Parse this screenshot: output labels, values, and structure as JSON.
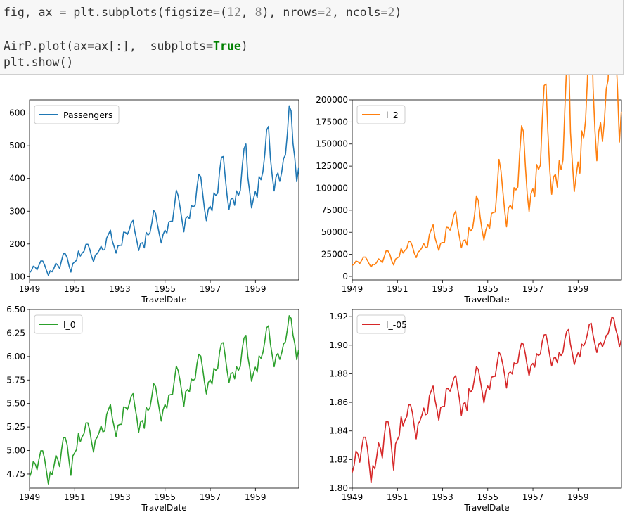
{
  "code": {
    "line1": {
      "t1": "fig, ax ",
      "op1": "=",
      "t2": " plt.subplots(figsize",
      "op2": "=",
      "t3": "(",
      "n1": "12",
      "t4": ", ",
      "n2": "8",
      "t5": "), nrows",
      "op3": "=",
      "n3": "2",
      "t6": ", ncols",
      "op4": "=",
      "n4": "2",
      "t7": ")"
    },
    "line2": {
      "t1": "AirP.plot(ax",
      "op1": "=",
      "t2": "ax[:],  subplots",
      "op2": "=",
      "kw": "True",
      "t3": ")"
    },
    "line3": {
      "t1": "plt.show()"
    }
  },
  "chart_data": [
    {
      "type": "line",
      "xlabel": "TravelDate",
      "xlim": [
        1949.0,
        1960.92
      ],
      "xticks": [
        "1949",
        "1951",
        "1953",
        "1955",
        "1957",
        "1959"
      ],
      "ylim": [
        90,
        640
      ],
      "yticks": [
        "100",
        "200",
        "300",
        "400",
        "500",
        "600"
      ],
      "legend_position": "top-left",
      "series": [
        {
          "name": "Passengers",
          "color": "#1f77b4",
          "x_start": 1949.0,
          "x_step": 0.0833,
          "values": [
            112,
            118,
            132,
            129,
            121,
            135,
            148,
            148,
            136,
            119,
            104,
            118,
            115,
            126,
            141,
            135,
            125,
            149,
            170,
            170,
            158,
            133,
            114,
            140,
            145,
            150,
            178,
            163,
            172,
            178,
            199,
            199,
            184,
            162,
            146,
            166,
            171,
            180,
            193,
            181,
            183,
            218,
            230,
            242,
            209,
            191,
            172,
            194,
            196,
            196,
            236,
            235,
            229,
            243,
            264,
            272,
            237,
            211,
            180,
            201,
            204,
            188,
            235,
            227,
            234,
            264,
            302,
            293,
            259,
            229,
            203,
            229,
            242,
            233,
            267,
            269,
            270,
            315,
            364,
            347,
            312,
            274,
            237,
            278,
            284,
            277,
            317,
            313,
            318,
            374,
            413,
            405,
            355,
            306,
            271,
            306,
            315,
            301,
            356,
            348,
            355,
            422,
            465,
            467,
            404,
            347,
            305,
            336,
            340,
            318,
            362,
            348,
            363,
            435,
            491,
            505,
            404,
            359,
            310,
            337,
            360,
            342,
            406,
            396,
            420,
            472,
            548,
            559,
            463,
            407,
            362,
            405,
            417,
            391,
            419,
            461,
            472,
            535,
            622,
            606,
            508,
            461,
            390,
            432
          ]
        }
      ]
    },
    {
      "type": "line",
      "xlabel": "TravelDate",
      "xlim": [
        1949.0,
        1960.92
      ],
      "xticks": [
        "1949",
        "1951",
        "1953",
        "1955",
        "1957",
        "1959"
      ],
      "ylim": [
        -4000,
        200000
      ],
      "yticks": [
        "0",
        "25000",
        "50000",
        "75000",
        "100000",
        "125000",
        "150000",
        "175000",
        "200000"
      ],
      "legend_position": "top-left",
      "series": [
        {
          "name": "l_2",
          "color": "#ff7f0e",
          "transform": "Passengers^2"
        }
      ]
    },
    {
      "type": "line",
      "xlabel": "TravelDate",
      "xlim": [
        1949.0,
        1960.92
      ],
      "xticks": [
        "1949",
        "1951",
        "1953",
        "1955",
        "1957",
        "1959"
      ],
      "ylim": [
        4.6,
        6.5
      ],
      "yticks": [
        "4.75",
        "5.00",
        "5.25",
        "5.50",
        "5.75",
        "6.00",
        "6.25",
        "6.50"
      ],
      "legend_position": "top-left",
      "series": [
        {
          "name": "l_0",
          "color": "#2ca02c",
          "transform": "ln(Passengers)"
        }
      ]
    },
    {
      "type": "line",
      "xlabel": "TravelDate",
      "xlim": [
        1949.0,
        1960.92
      ],
      "xticks": [
        "1949",
        "1951",
        "1953",
        "1955",
        "1957",
        "1959"
      ],
      "ylim": [
        1.8,
        1.925
      ],
      "yticks": [
        "1.80",
        "1.82",
        "1.84",
        "1.86",
        "1.88",
        "1.90",
        "1.92"
      ],
      "legend_position": "top-left",
      "series": [
        {
          "name": "l_-05",
          "color": "#d62728",
          "transform": "2*(1-Passengers^-0.5)"
        }
      ]
    }
  ]
}
